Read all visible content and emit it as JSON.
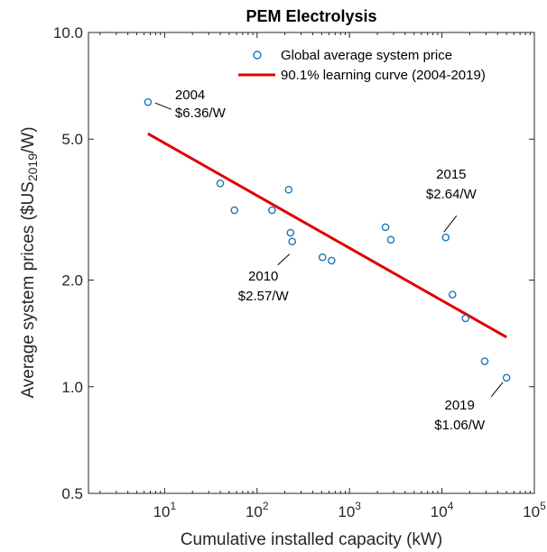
{
  "chart_data": {
    "type": "scatter",
    "title": "PEM Electrolysis",
    "xlabel": "Cumulative installed capacity (kW)",
    "ylabel": {
      "pre": "Average system prices ($US",
      "sub": "2019",
      "post": "/W)"
    },
    "xscale": "log",
    "yscale": "log",
    "xlim": [
      1.5,
      100000
    ],
    "ylim": [
      0.5,
      10
    ],
    "xticks": [
      {
        "value": 10,
        "base": "10",
        "exp": "1"
      },
      {
        "value": 100,
        "base": "10",
        "exp": "2"
      },
      {
        "value": 1000,
        "base": "10",
        "exp": "3"
      },
      {
        "value": 10000,
        "base": "10",
        "exp": "4"
      },
      {
        "value": 100000,
        "base": "10",
        "exp": "5"
      }
    ],
    "yticks": [
      {
        "value": 0.5,
        "label": "0.5"
      },
      {
        "value": 1,
        "label": "1.0"
      },
      {
        "value": 2,
        "label": "2.0"
      },
      {
        "value": 5,
        "label": "5.0"
      },
      {
        "value": 10,
        "label": "10.0"
      }
    ],
    "grid": false,
    "legend_position": "top-right",
    "series": [
      {
        "name": "Global average system price",
        "kind": "scatter",
        "marker": "open-circle",
        "color": "#1f77b4",
        "points": [
          {
            "x": 6.6,
            "y": 6.36
          },
          {
            "x": 40,
            "y": 3.75
          },
          {
            "x": 57,
            "y": 3.15
          },
          {
            "x": 145,
            "y": 3.15
          },
          {
            "x": 220,
            "y": 3.6
          },
          {
            "x": 230,
            "y": 2.72
          },
          {
            "x": 240,
            "y": 2.57
          },
          {
            "x": 510,
            "y": 2.32
          },
          {
            "x": 640,
            "y": 2.27
          },
          {
            "x": 2450,
            "y": 2.82
          },
          {
            "x": 2800,
            "y": 2.6
          },
          {
            "x": 11000,
            "y": 2.64
          },
          {
            "x": 13000,
            "y": 1.82
          },
          {
            "x": 18000,
            "y": 1.56
          },
          {
            "x": 29000,
            "y": 1.18
          },
          {
            "x": 50000,
            "y": 1.06
          }
        ]
      },
      {
        "name": "90.1% learning curve (2004-2019)",
        "kind": "line",
        "color": "#e00000",
        "points": [
          {
            "x": 6.6,
            "y": 5.18
          },
          {
            "x": 50000,
            "y": 1.38
          }
        ]
      }
    ],
    "annotations": [
      {
        "id": "2004",
        "year": "2004",
        "price": "$6.36/W",
        "point": {
          "x": 6.6,
          "y": 6.36
        },
        "text_anchor": "start"
      },
      {
        "id": "2010",
        "year": "2010",
        "price": "$2.57/W",
        "point": {
          "x": 240,
          "y": 2.57
        },
        "text_anchor": "middle"
      },
      {
        "id": "2015",
        "year": "2015",
        "price": "$2.64/W",
        "point": {
          "x": 11000,
          "y": 2.64
        },
        "text_anchor": "middle"
      },
      {
        "id": "2019",
        "year": "2019",
        "price": "$1.06/W",
        "point": {
          "x": 50000,
          "y": 1.06
        },
        "text_anchor": "middle"
      }
    ]
  }
}
